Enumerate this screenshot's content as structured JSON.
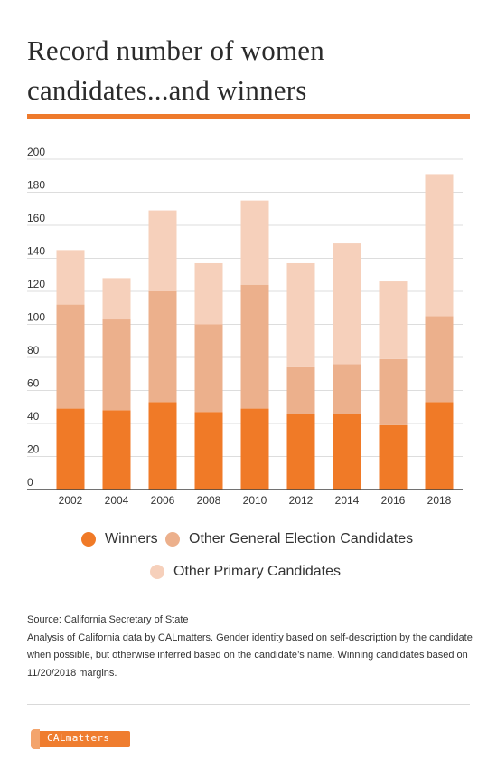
{
  "title_line1": "Record number of women",
  "title_line2": "candidates...and winners",
  "colors": {
    "accent": "#ee7a2c",
    "winners": "#f07a27",
    "general": "#ecb08c",
    "primary": "#f6d0bb",
    "grid": "#dddddd",
    "axis": "#444444"
  },
  "legend": {
    "winners": "Winners",
    "general": "Other General Election Candidates",
    "primary": "Other Primary Candidates"
  },
  "chart_data": {
    "type": "bar",
    "stacked": true,
    "categories": [
      "2002",
      "2004",
      "2006",
      "2008",
      "2010",
      "2012",
      "2014",
      "2016",
      "2018"
    ],
    "series": [
      {
        "name": "Winners",
        "values": [
          49,
          48,
          53,
          47,
          49,
          46,
          46,
          39,
          53
        ]
      },
      {
        "name": "Other General Election Candidates",
        "values": [
          63,
          55,
          67,
          53,
          75,
          28,
          30,
          40,
          52
        ]
      },
      {
        "name": "Other Primary Candidates",
        "values": [
          33,
          25,
          49,
          37,
          51,
          63,
          73,
          47,
          86
        ]
      }
    ],
    "y_ticks": [
      0,
      20,
      40,
      60,
      80,
      100,
      120,
      140,
      160,
      180,
      200
    ],
    "ylim": [
      0,
      200
    ],
    "grid": true,
    "legend_position": "bottom"
  },
  "notes": {
    "source": "Source: California Secretary of State",
    "analysis": "Analysis of California data by CALmatters. Gender identity based on self-description by the candidate when possible, but otherwise inferred based on the candidate’s name. Winning candidates based on 11/20/2018 margins."
  },
  "logo_text": "CALmatters"
}
